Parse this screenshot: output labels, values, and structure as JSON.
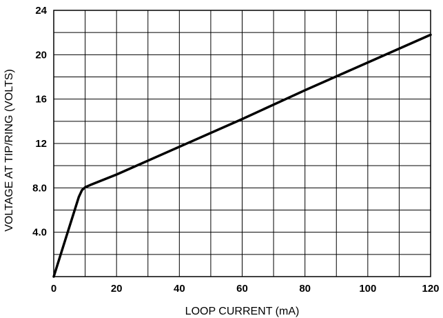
{
  "chart_data": {
    "type": "line",
    "title": "",
    "xlabel": "LOOP CURRENT (mA)",
    "ylabel": "VOLTAGE AT TIP/RING (VOLTS)",
    "xlim": [
      0,
      120
    ],
    "ylim": [
      0,
      24
    ],
    "x_ticks": [
      {
        "value": 0,
        "label": "0"
      },
      {
        "value": 20,
        "label": "20"
      },
      {
        "value": 40,
        "label": "40"
      },
      {
        "value": 60,
        "label": "60"
      },
      {
        "value": 80,
        "label": "80"
      },
      {
        "value": 100,
        "label": "100"
      },
      {
        "value": 120,
        "label": "120"
      }
    ],
    "y_ticks": [
      {
        "value": 4,
        "label": "4.0"
      },
      {
        "value": 8,
        "label": "8.0"
      },
      {
        "value": 12,
        "label": "12"
      },
      {
        "value": 16,
        "label": "16"
      },
      {
        "value": 20,
        "label": "20"
      },
      {
        "value": 24,
        "label": "24"
      }
    ],
    "x_gridlines": [
      0,
      10,
      20,
      30,
      40,
      50,
      60,
      70,
      80,
      90,
      100,
      110,
      120
    ],
    "y_gridlines": [
      0,
      2,
      4,
      6,
      8,
      10,
      12,
      14,
      16,
      18,
      20,
      22,
      24
    ],
    "grid": true,
    "legend": "none",
    "series": [
      {
        "color": "#000000",
        "points": [
          [
            0,
            0
          ],
          [
            4,
            3.6
          ],
          [
            8,
            7.2
          ],
          [
            9,
            7.8
          ],
          [
            10,
            8.05
          ],
          [
            12,
            8.3
          ],
          [
            20,
            9.2
          ],
          [
            40,
            11.7
          ],
          [
            60,
            14.2
          ],
          [
            80,
            16.8
          ],
          [
            100,
            19.3
          ],
          [
            120,
            21.8
          ]
        ]
      }
    ]
  }
}
